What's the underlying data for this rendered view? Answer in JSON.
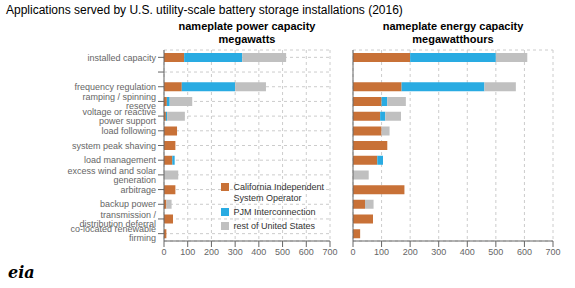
{
  "title": "Applications served by U.S. utility-scale battery storage installations (2016)",
  "annotations": [
    "eia"
  ],
  "chart_data": [
    {
      "type": "bar",
      "title": "nameplate power capacity",
      "subtitle": "megawatts",
      "orientation": "horizontal",
      "stacked": true,
      "grid": true,
      "legend": "lower right",
      "categories": [
        "installed capacity",
        null,
        "frequency regulation",
        "ramping / spinning reserve",
        "voltage or reactive power support",
        "load following",
        "system peak shaving",
        "load management",
        "excess wind and solar generation",
        "arbitrage",
        "backup power",
        "transmission / distribution deferral",
        "co-located renewable firming"
      ],
      "series": [
        {
          "name": "California Independent\nSystem Operator",
          "color": "#c87137",
          "values": [
            85,
            0,
            75,
            12,
            8,
            55,
            48,
            35,
            0,
            48,
            10,
            38,
            10
          ]
        },
        {
          "name": "PJM Interconnection",
          "color": "#29abe2",
          "values": [
            245,
            0,
            225,
            12,
            5,
            0,
            0,
            10,
            0,
            0,
            0,
            0,
            0
          ]
        },
        {
          "name": "rest of United States",
          "color": "#c0c0c0",
          "values": [
            185,
            0,
            130,
            95,
            75,
            0,
            0,
            0,
            60,
            0,
            22,
            0,
            0
          ]
        }
      ],
      "xlim": [
        0,
        700
      ],
      "xticks": [
        0,
        100,
        200,
        300,
        400,
        500,
        600,
        700
      ]
    },
    {
      "type": "bar",
      "title": "nameplate energy capacity",
      "subtitle": "megawatthours",
      "orientation": "horizontal",
      "stacked": true,
      "grid": true,
      "tick_labels": "x",
      "categories": [
        "installed capacity",
        null,
        "frequency regulation",
        "ramping / spinning reserve",
        "voltage or reactive power support",
        "load following",
        "system peak shaving",
        "load management",
        "excess wind and solar generation",
        "arbitrage",
        "backup power",
        "transmission / distribution deferral",
        "co-located renewable firming"
      ],
      "series": [
        {
          "name": "California Independent\nSystem Operator",
          "color": "#c87137",
          "values": [
            200,
            0,
            170,
            100,
            95,
            100,
            120,
            85,
            0,
            180,
            42,
            70,
            25
          ]
        },
        {
          "name": "PJM Interconnection",
          "color": "#29abe2",
          "values": [
            300,
            0,
            290,
            20,
            18,
            0,
            0,
            20,
            0,
            0,
            0,
            0,
            0
          ]
        },
        {
          "name": "rest of United States",
          "color": "#c0c0c0",
          "values": [
            110,
            0,
            110,
            65,
            55,
            28,
            0,
            0,
            55,
            0,
            30,
            0,
            0
          ]
        }
      ],
      "xlim": [
        0,
        700
      ],
      "xticks": [
        0,
        100,
        200,
        300,
        400,
        500,
        600,
        700
      ]
    }
  ]
}
